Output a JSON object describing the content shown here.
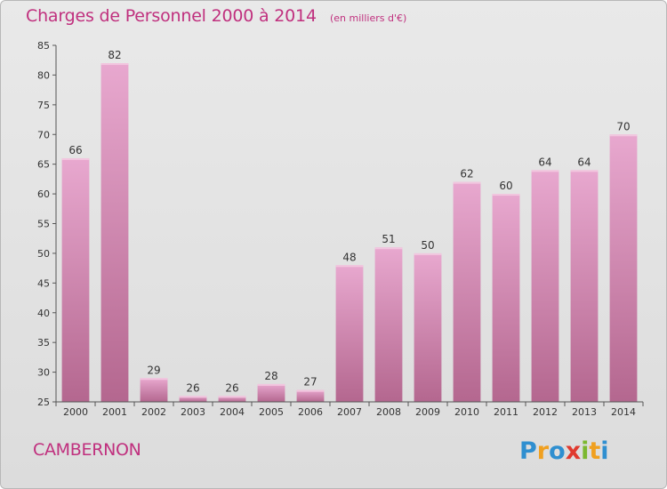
{
  "title": "Charges de Personnel 2000 à 2014",
  "subtitle": "(en milliers d'€)",
  "commune": "CAMBERNON",
  "logo_text": "Proxiti",
  "colors": {
    "title": "#c0307e",
    "bar_light": "#e8a8cf",
    "bar_dark": "#b4678f",
    "axis": "#555555",
    "text": "#333333"
  },
  "chart_data": {
    "type": "bar",
    "title": "Charges de Personnel 2000 à 2014",
    "subtitle": "(en milliers d'€)",
    "xlabel": "",
    "ylabel": "",
    "categories": [
      "2000",
      "2001",
      "2002",
      "2003",
      "2004",
      "2005",
      "2006",
      "2007",
      "2008",
      "2009",
      "2010",
      "2011",
      "2012",
      "2013",
      "2014"
    ],
    "values": [
      66,
      82,
      29,
      26,
      26,
      28,
      27,
      48,
      51,
      50,
      62,
      60,
      64,
      64,
      70
    ],
    "ylim": [
      25,
      85
    ],
    "yticks": [
      25,
      30,
      35,
      40,
      45,
      50,
      55,
      60,
      65,
      70,
      75,
      80,
      85
    ],
    "grid": false,
    "data_labels": true
  }
}
